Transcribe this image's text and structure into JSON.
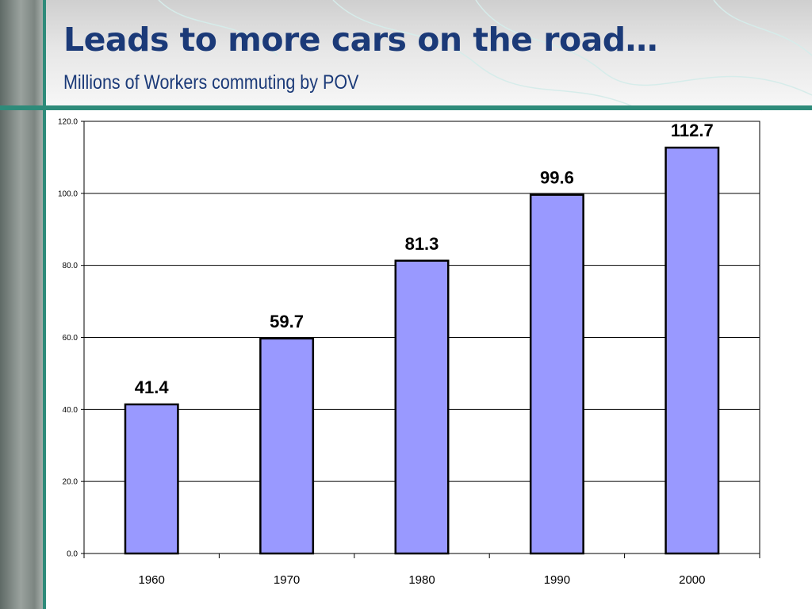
{
  "slide": {
    "title": "Leads to more cars on the road…",
    "subtitle": "Millions of Workers commuting by POV"
  },
  "colors": {
    "title": "#1b3a78",
    "accent_line": "#2e8b7a",
    "bar_fill": "#9999ff",
    "bar_stroke": "#000000",
    "gridline": "#000000"
  },
  "chart_data": {
    "type": "bar",
    "categories": [
      "1960",
      "1970",
      "1980",
      "1990",
      "2000"
    ],
    "values": [
      41.4,
      59.7,
      81.3,
      99.6,
      112.7
    ],
    "value_labels": [
      "41.4",
      "59.7",
      "81.3",
      "99.6",
      "112.7"
    ],
    "title": "",
    "xlabel": "",
    "ylabel": "",
    "ylim": [
      0,
      120
    ],
    "yticks": [
      0,
      20,
      40,
      60,
      80,
      100,
      120
    ],
    "ytick_labels": [
      "0.0",
      "20.0",
      "40.0",
      "60.0",
      "80.0",
      "100.0",
      "120.0"
    ],
    "grid": true,
    "legend": "none"
  }
}
